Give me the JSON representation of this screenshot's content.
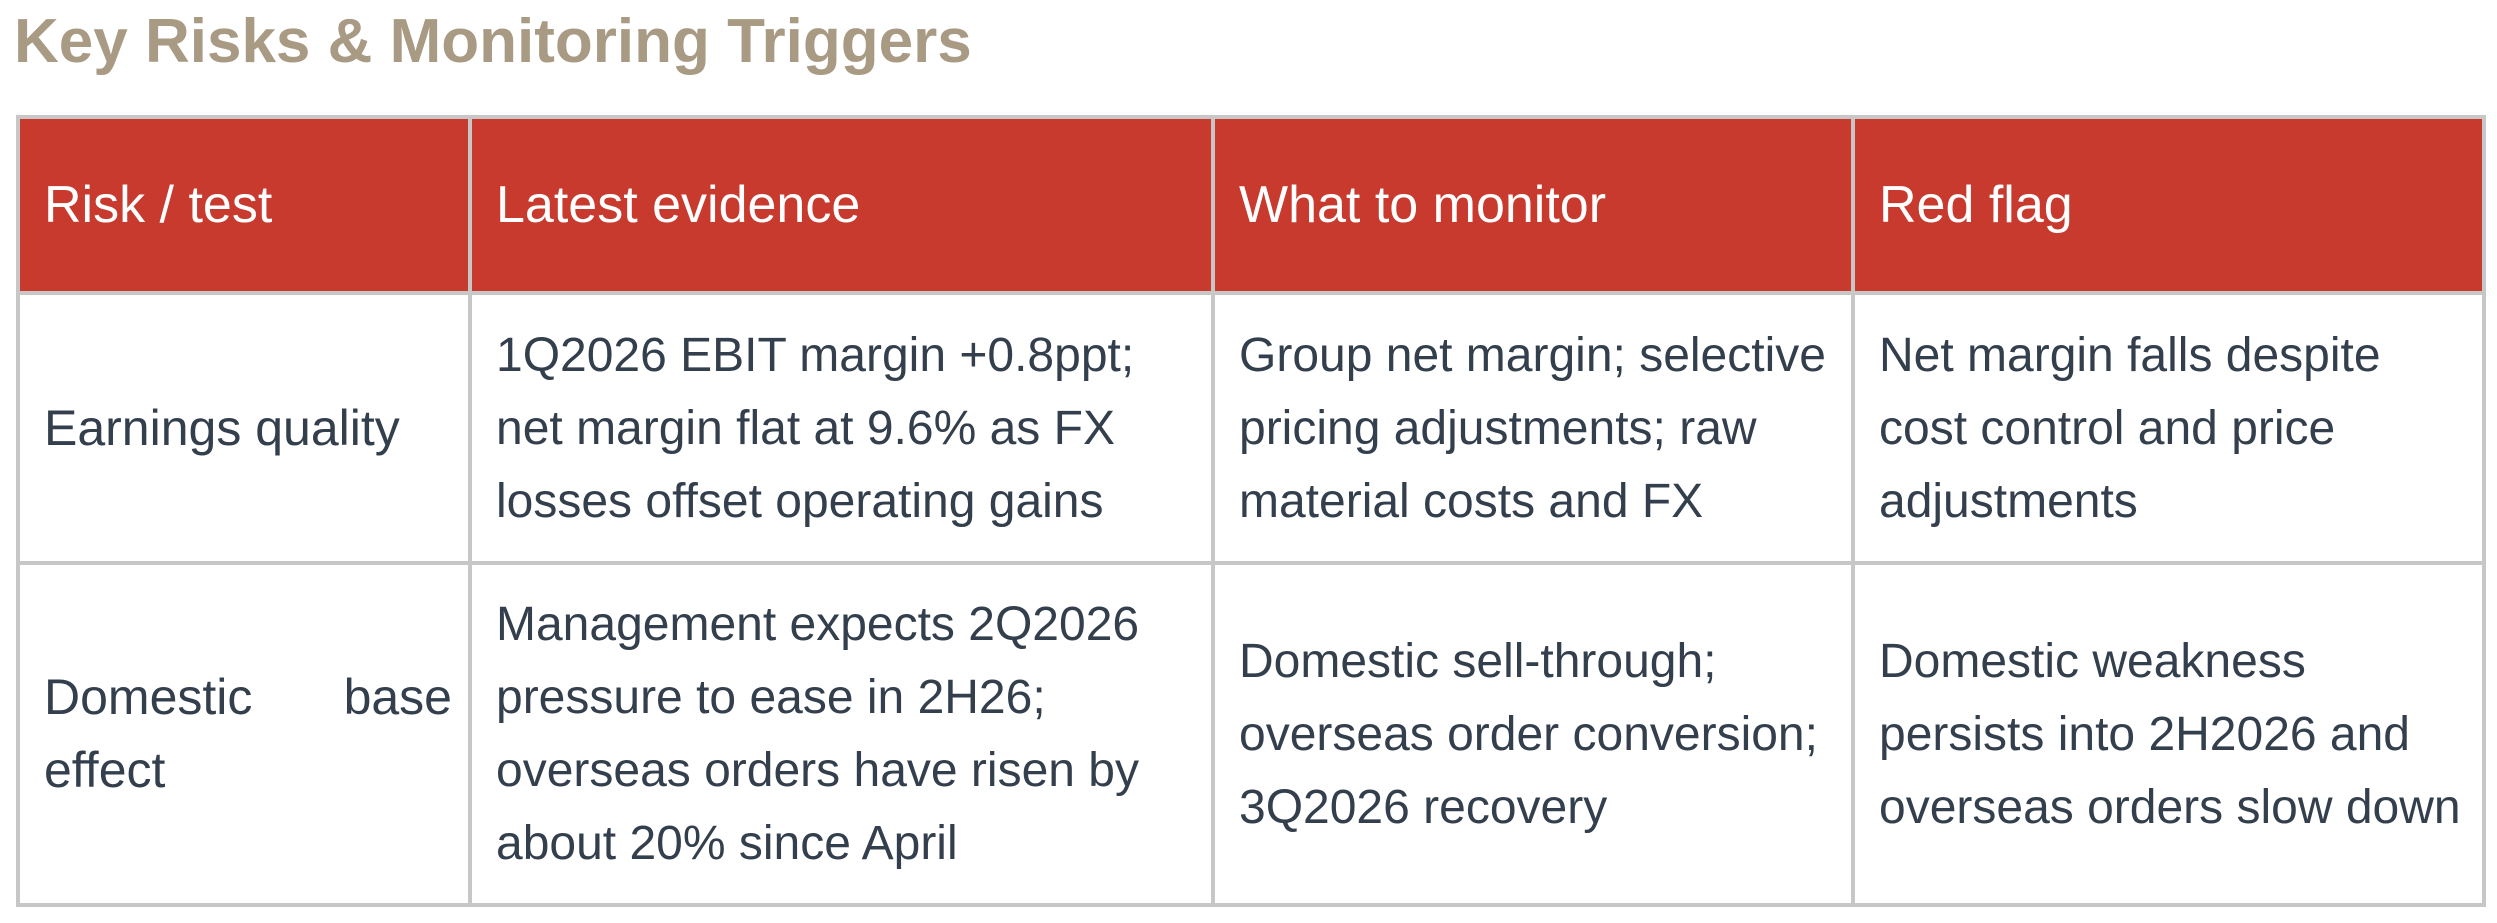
{
  "title": "Key Risks & Monitoring Triggers",
  "table": {
    "headers": [
      "Risk / test",
      "Latest evidence",
      "What to monitor",
      "Red flag"
    ],
    "rows": [
      {
        "risk": "Earnings quality",
        "evidence": "1Q2026 EBIT margin +0.8ppt; net margin flat at 9.6% as FX losses offset operating gains",
        "monitor": "Group net margin; selective pricing adjustments; raw material costs and FX",
        "red_flag": "Net margin falls despite cost control and price adjustments"
      },
      {
        "risk": "Domestic base effect",
        "evidence": "Management expects 2Q2026 pressure to ease in 2H26; overseas orders have risen by about 20% since April",
        "monitor": "Domestic sell-through; overseas order conversion; 3Q2026 recovery",
        "red_flag": "Domestic weakness persists into 2H2026 and overseas orders slow down"
      }
    ]
  },
  "colors": {
    "title": "#A89A83",
    "header_bg": "#C8392E",
    "header_text": "#FFFFFF",
    "body_text": "#333F4C",
    "border": "#C7C7C7"
  }
}
